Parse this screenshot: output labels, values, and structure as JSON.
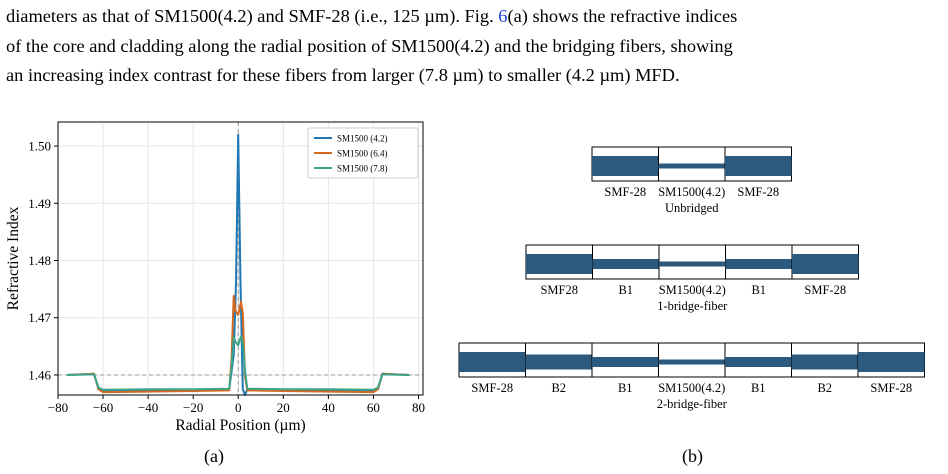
{
  "paragraph": {
    "line1": "diameters as that of SM1500(4.2) and SMF-28 (i.e., 125 µm). Fig. ",
    "line1_ref": "6",
    "line1_tail": "(a) shows the refractive indices",
    "line2": "of the core and cladding along the radial position of SM1500(4.2) and the bridging fibers, showing",
    "line3": "an increasing index contrast for these fibers from larger (7.8 µm) to smaller (4.2 µm) MFD."
  },
  "chart_data": {
    "type": "line",
    "xlabel": "Radial Position (µm)",
    "ylabel": "Refractive Index",
    "xlim": [
      -80,
      82
    ],
    "ylim": [
      1.4565,
      1.5042
    ],
    "xticks": [
      -80,
      -60,
      -40,
      -20,
      0,
      20,
      40,
      60,
      80
    ],
    "xtick_labels": [
      "−80",
      "−60",
      "−40",
      "−20",
      "0",
      "20",
      "40",
      "60",
      "80"
    ],
    "yticks": [
      1.46,
      1.47,
      1.48,
      1.49,
      1.5
    ],
    "ytick_labels": [
      "1.46",
      "1.47",
      "1.48",
      "1.49",
      "1.50"
    ],
    "grid": true,
    "legend_position": "top-right",
    "reference_lines": {
      "horizontal": 1.46,
      "vertical": 0
    },
    "series": [
      {
        "name": "SM1500 (4.2)",
        "color": "#1f77b4",
        "x": [
          -76,
          -64,
          -62,
          -60,
          -40,
          -20,
          -4,
          -3,
          -2,
          -1,
          0,
          1,
          2,
          3,
          4,
          20,
          40,
          60,
          62,
          64,
          76
        ],
        "y": [
          1.46,
          1.4602,
          1.4575,
          1.4572,
          1.4573,
          1.4573,
          1.4575,
          1.4605,
          1.4635,
          1.476,
          1.502,
          1.476,
          1.4575,
          1.4565,
          1.4575,
          1.4573,
          1.4573,
          1.4572,
          1.4575,
          1.4602,
          1.46
        ]
      },
      {
        "name": "SM1500 (6.4)",
        "color": "#d2691e",
        "x": [
          -76,
          -64,
          -62,
          -60,
          -40,
          -20,
          -4,
          -3,
          -2,
          -1.2,
          0,
          1.2,
          2,
          3,
          4,
          20,
          40,
          60,
          62,
          64,
          76
        ],
        "y": [
          1.46,
          1.4602,
          1.4575,
          1.457,
          1.4571,
          1.4572,
          1.4573,
          1.4625,
          1.4738,
          1.4712,
          1.4705,
          1.4728,
          1.4708,
          1.4598,
          1.4573,
          1.4572,
          1.4571,
          1.457,
          1.4575,
          1.4602,
          1.46
        ]
      },
      {
        "name": "SM1500 (7.8)",
        "color": "#3aa58a",
        "x": [
          -76,
          -64,
          -62,
          -60,
          -40,
          -20,
          -4,
          -3,
          -2,
          -1.2,
          0,
          1.2,
          2,
          3,
          4,
          20,
          40,
          60,
          62,
          64,
          76
        ],
        "y": [
          1.46,
          1.4601,
          1.4578,
          1.4574,
          1.4575,
          1.4575,
          1.4576,
          1.4612,
          1.4666,
          1.4658,
          1.4652,
          1.4668,
          1.4656,
          1.4608,
          1.4576,
          1.4575,
          1.4575,
          1.4574,
          1.4578,
          1.4601,
          1.46
        ]
      }
    ]
  },
  "diagram": {
    "rows": [
      {
        "boxes": [
          {
            "label": "SMF-28",
            "core": "large"
          },
          {
            "label": "SM1500(4.2)",
            "core": "thin"
          },
          {
            "label": "SMF-28",
            "core": "large"
          }
        ],
        "caption": "Unbridged"
      },
      {
        "boxes": [
          {
            "label": "SMF28",
            "core": "large"
          },
          {
            "label": "B1",
            "core": "medium"
          },
          {
            "label": "SM1500(4.2)",
            "core": "thin"
          },
          {
            "label": "B1",
            "core": "medium"
          },
          {
            "label": "SMF-28",
            "core": "large"
          }
        ],
        "caption": "1-bridge-fiber"
      },
      {
        "boxes": [
          {
            "label": "SMF-28",
            "core": "large"
          },
          {
            "label": "B2",
            "core": "medium-large"
          },
          {
            "label": "B1",
            "core": "medium"
          },
          {
            "label": "SM1500(4.2)",
            "core": "thin"
          },
          {
            "label": "B1",
            "core": "medium"
          },
          {
            "label": "B2",
            "core": "medium-large"
          },
          {
            "label": "SMF-28",
            "core": "large"
          }
        ],
        "caption": "2-bridge-fiber"
      }
    ],
    "core_color": "#2b5a7e"
  },
  "captions": {
    "left": "(a)",
    "right": "(b)"
  }
}
